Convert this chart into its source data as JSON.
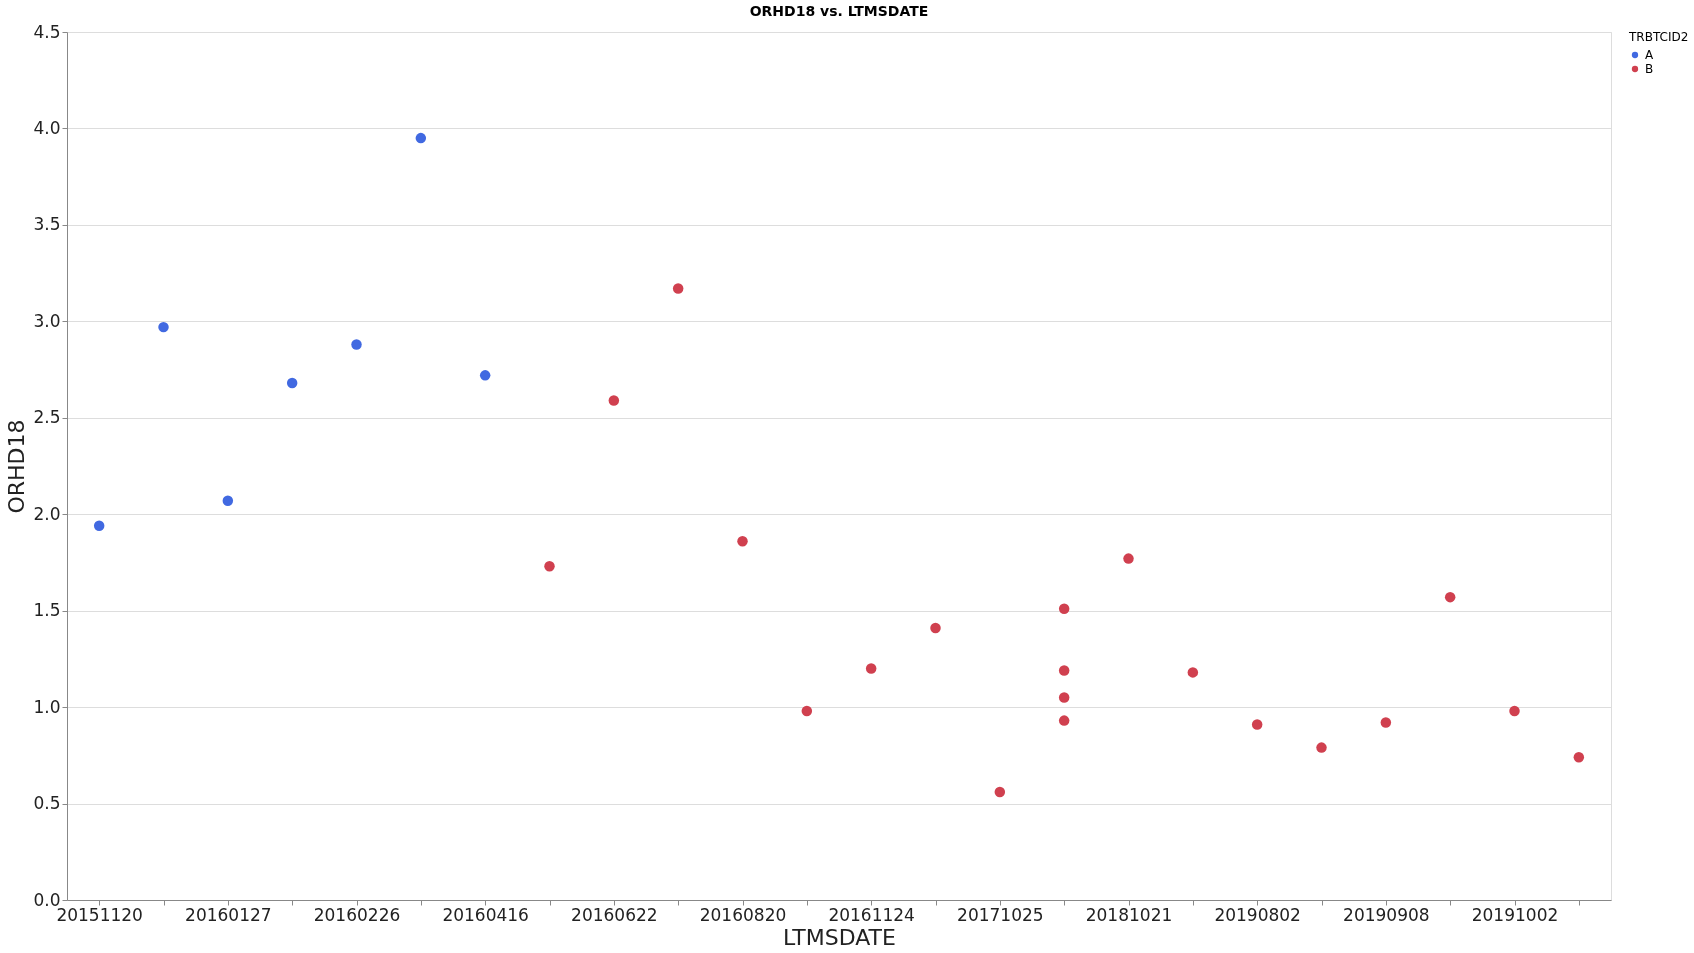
{
  "chart_data": {
    "type": "scatter",
    "title": "ORHD18 vs. LTMSDATE",
    "xlabel": "LTMSDATE",
    "ylabel": "ORHD18",
    "legend_title": "TRBTCID2",
    "categories": [
      "20151120",
      null,
      "20160127",
      null,
      "20160226",
      null,
      "20160416",
      null,
      "20160622",
      null,
      "20160820",
      null,
      "20161124",
      null,
      "20171025",
      null,
      "20181021",
      null,
      "20190802",
      null,
      "20190908",
      null,
      "20191002",
      null
    ],
    "series": [
      {
        "name": "A",
        "color": "#4169e1",
        "values": [
          1.94,
          2.97,
          2.07,
          2.68,
          2.88,
          3.95,
          2.72,
          null,
          null,
          null,
          null,
          null,
          null,
          null,
          null,
          null,
          null,
          null,
          null,
          null,
          null,
          null,
          null,
          null
        ]
      },
      {
        "name": "B",
        "color": "#d0404f",
        "values": [
          null,
          null,
          null,
          null,
          null,
          null,
          null,
          1.73,
          2.59,
          3.17,
          1.86,
          0.98,
          1.2,
          1.41,
          0.56,
          1.51,
          1.77,
          1.18,
          0.91,
          0.79,
          0.92,
          1.57,
          0.98,
          0.74
        ]
      },
      {
        "color": "#d0404f",
        "values": [
          null,
          null,
          null,
          null,
          null,
          null,
          null,
          null,
          null,
          null,
          null,
          null,
          null,
          null,
          null,
          1.19,
          null,
          null,
          null,
          null,
          null,
          null,
          null,
          null
        ]
      },
      {
        "color": "#d0404f",
        "values": [
          null,
          null,
          null,
          null,
          null,
          null,
          null,
          null,
          null,
          null,
          null,
          null,
          null,
          null,
          null,
          1.05,
          null,
          null,
          null,
          null,
          null,
          null,
          null,
          null
        ]
      },
      {
        "color": "#d0404f",
        "values": [
          null,
          null,
          null,
          null,
          null,
          null,
          null,
          null,
          null,
          null,
          null,
          null,
          null,
          null,
          null,
          0.93,
          null,
          null,
          null,
          null,
          null,
          null,
          null,
          null
        ]
      }
    ],
    "ylim": [
      0,
      4.5
    ],
    "yticks": [
      {
        "value": 0,
        "label": "0.0"
      },
      {
        "value": 0.5,
        "label": "0.5"
      },
      {
        "value": 1,
        "label": "1.0"
      },
      {
        "value": 1.5,
        "label": "1.5"
      },
      {
        "value": 2,
        "label": "2.0"
      },
      {
        "value": 2.5,
        "label": "2.5"
      },
      {
        "value": 3,
        "label": "3.0"
      },
      {
        "value": 3.5,
        "label": "3.5"
      },
      {
        "value": 4,
        "label": "4.0"
      },
      {
        "value": 4.5,
        "label": "4.5"
      }
    ],
    "grid": "y",
    "legend": "top right",
    "marker": "circle"
  }
}
